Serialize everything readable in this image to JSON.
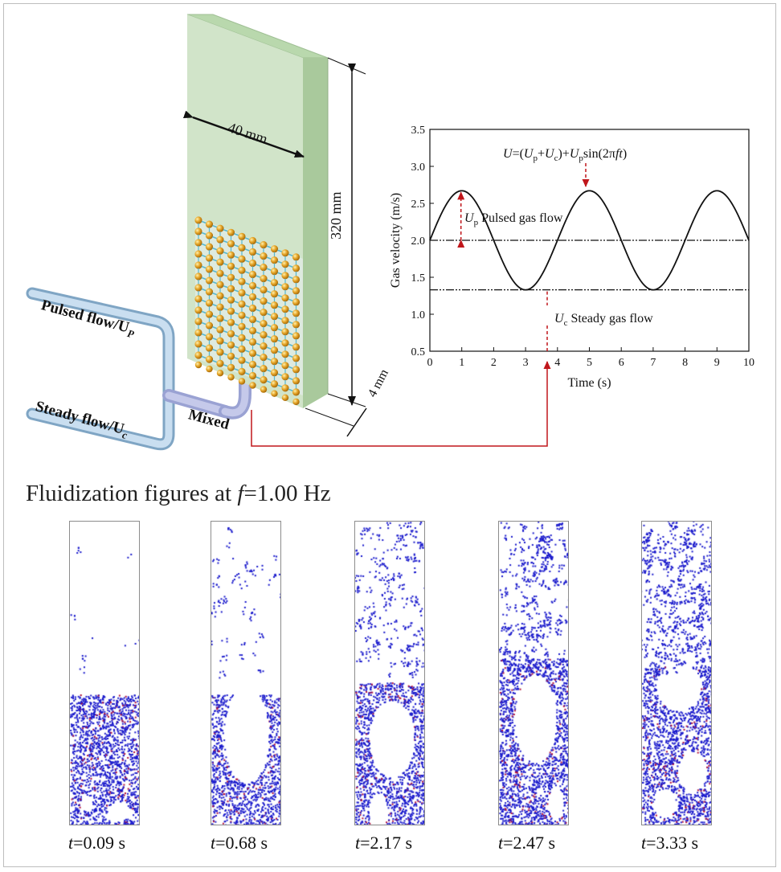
{
  "apparatus": {
    "width_label": "40 mm",
    "height_label": "320 mm",
    "depth_label": "4 mm",
    "pulsed_label": "Pulsed flow/U",
    "pulsed_sub": "P",
    "steady_label": "Steady flow/U",
    "steady_sub": "c",
    "mixed_label": "Mixed"
  },
  "chart_data": {
    "type": "line",
    "xlabel": "Time (s)",
    "ylabel": "Gas velocity (m/s)",
    "xlim": [
      0,
      10
    ],
    "ylim": [
      0.5,
      3.5
    ],
    "xticks": [
      "0",
      "1",
      "2",
      "3",
      "4",
      "5",
      "6",
      "7",
      "8",
      "9",
      "10"
    ],
    "yticks": [
      "0.5",
      "1.0",
      "1.5",
      "2.0",
      "2.5",
      "3.0",
      "3.5"
    ],
    "formula": "U=(Up+Uc)+Upsin(2πft)",
    "series": [
      {
        "mean": 2.0,
        "amplitude": 0.67,
        "period": 4.0,
        "start": 0,
        "end": 10
      }
    ],
    "reference_lines": [
      2.0,
      1.33
    ],
    "annotations": {
      "pulsed_symbol": "U",
      "pulsed_sub": "p",
      "pulsed_text": "Pulsed gas flow",
      "steady_symbol": "U",
      "steady_sub": "c",
      "steady_text": "Steady gas flow"
    }
  },
  "fluidization": {
    "title_prefix": "Fluidization figures at ",
    "title_var": "f",
    "title_value": "=1.00 Hz",
    "snapshots": [
      {
        "time": "=0.09 s",
        "label_var": "t"
      },
      {
        "time": "=0.68 s",
        "label_var": "t"
      },
      {
        "time": "=2.17 s",
        "label_var": "t"
      },
      {
        "time": "=2.47 s",
        "label_var": "t"
      },
      {
        "time": "=3.33 s",
        "label_var": "t"
      }
    ]
  },
  "colors": {
    "column": "#cfe3c6",
    "pipe": "#aac8df",
    "particle": "#1a1acc",
    "arrow": "#c0161b"
  }
}
